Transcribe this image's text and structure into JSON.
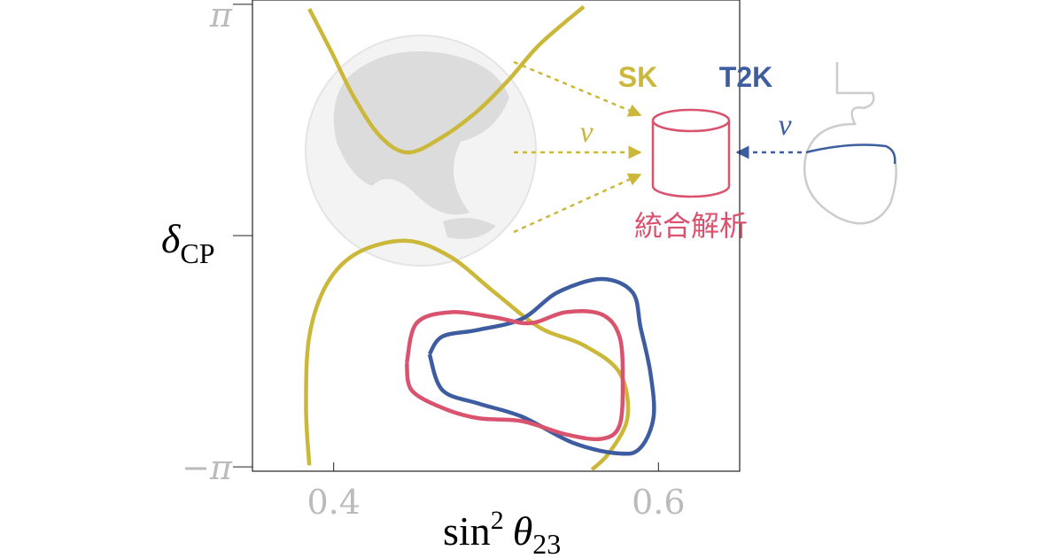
{
  "chart_data": {
    "type": "contour",
    "x_label": {
      "text": "sin",
      "superscript": "2",
      "symbol": "θ",
      "subscript": "23"
    },
    "y_label": {
      "symbol": "δ",
      "subscript": "CP"
    },
    "xlim": [
      0.35,
      0.65
    ],
    "ylim": [
      -3.2,
      3.2
    ],
    "xticks": [
      0.4,
      0.6
    ],
    "yticks": [
      {
        "value": -3.14159,
        "label": "−π"
      },
      {
        "value": 0,
        "label": null
      },
      {
        "value": 3.14159,
        "label": "π"
      }
    ],
    "series": [
      {
        "name": "SK",
        "color": "#cbb83a",
        "x": [
          0.385,
          0.399,
          0.4125,
          0.429,
          0.446,
          0.467,
          0.489,
          0.508,
          0.527,
          0.554,
          null,
          0.385,
          0.383,
          0.385,
          0.396,
          0.415,
          0.445,
          0.472,
          0.499,
          0.527,
          0.554,
          0.576,
          0.581,
          0.57,
          0.559
        ],
        "values": [
          3.08,
          2.48,
          1.88,
          1.34,
          1.13,
          1.34,
          1.7,
          2.12,
          2.6,
          3.11,
          null,
          -3.12,
          -2.34,
          -1.37,
          -0.65,
          -0.23,
          -0.07,
          -0.29,
          -0.77,
          -1.25,
          -1.49,
          -1.86,
          -2.46,
          -2.94,
          -3.18
        ]
      },
      {
        "name": "T2K",
        "color": "#3d5da0",
        "x": [
          0.459,
          0.467,
          0.489,
          0.516,
          0.538,
          0.565,
          0.584,
          0.589,
          0.595,
          0.597,
          0.589,
          0.576,
          0.548,
          0.516,
          0.489,
          0.467,
          0.459
        ],
        "values": [
          -1.61,
          -1.37,
          -1.28,
          -1.13,
          -0.77,
          -0.59,
          -0.77,
          -1.25,
          -1.86,
          -2.46,
          -2.88,
          -2.96,
          -2.82,
          -2.46,
          -2.28,
          -2.1,
          -1.61
        ]
      },
      {
        "name": "統合解析",
        "color": "#d9526e",
        "x": [
          0.445,
          0.451,
          0.472,
          0.499,
          0.521,
          0.543,
          0.565,
          0.576,
          0.578,
          0.576,
          0.565,
          0.543,
          0.516,
          0.489,
          0.467,
          0.448,
          0.445
        ],
        "values": [
          -1.73,
          -1.19,
          -1.04,
          -1.11,
          -1.19,
          -1.04,
          -1.07,
          -1.37,
          -1.98,
          -2.58,
          -2.76,
          -2.7,
          -2.52,
          -2.48,
          -2.34,
          -2.1,
          -1.73
        ]
      }
    ],
    "annotations": [
      "ν",
      "ν"
    ]
  }
}
